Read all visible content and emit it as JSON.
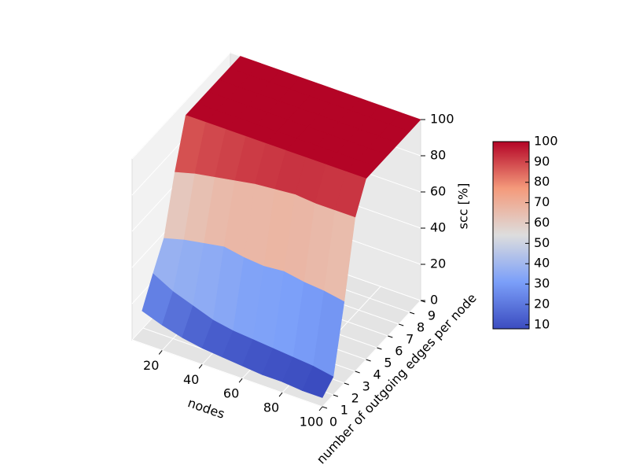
{
  "chart_data": {
    "type": "surface",
    "xlabel": "nodes",
    "ylabel": "number of outgoing edges per node",
    "zlabel": "scc [%]",
    "x": [
      10,
      20,
      30,
      40,
      50,
      60,
      70,
      80,
      90,
      100
    ],
    "y": [
      0,
      1,
      2,
      3,
      4,
      5,
      6,
      7,
      8,
      9
    ],
    "z": [
      [
        18,
        14,
        11,
        9,
        8,
        7,
        6,
        6,
        5,
        5
      ],
      [
        32,
        26,
        22,
        18,
        16,
        15,
        14,
        13,
        12,
        10
      ],
      [
        45,
        48,
        50,
        52,
        50,
        49,
        50,
        48,
        47,
        45
      ],
      [
        75,
        78,
        80,
        82,
        84,
        85,
        86,
        85,
        85,
        85
      ],
      [
        100,
        100,
        100,
        100,
        100,
        100,
        100,
        100,
        100,
        100
      ],
      [
        100,
        100,
        100,
        100,
        100,
        100,
        100,
        100,
        100,
        100
      ],
      [
        100,
        100,
        100,
        100,
        100,
        100,
        100,
        100,
        100,
        100
      ],
      [
        100,
        100,
        100,
        100,
        100,
        100,
        100,
        100,
        100,
        100
      ],
      [
        100,
        100,
        100,
        100,
        100,
        100,
        100,
        100,
        100,
        100
      ],
      [
        100,
        100,
        100,
        100,
        100,
        100,
        100,
        100,
        100,
        100
      ]
    ],
    "xlim": [
      5,
      100
    ],
    "ylim": [
      0,
      9
    ],
    "zlim": [
      0,
      100
    ],
    "xticks": [
      20,
      40,
      60,
      80,
      100
    ],
    "yticks": [
      0,
      1,
      2,
      3,
      4,
      5,
      6,
      7,
      8,
      9
    ],
    "zticks": [
      0,
      20,
      40,
      60,
      80,
      100
    ],
    "colormap": "coolwarm",
    "clim": [
      8,
      100
    ],
    "cticks": [
      10,
      20,
      30,
      40,
      50,
      60,
      70,
      80,
      90,
      100
    ]
  }
}
